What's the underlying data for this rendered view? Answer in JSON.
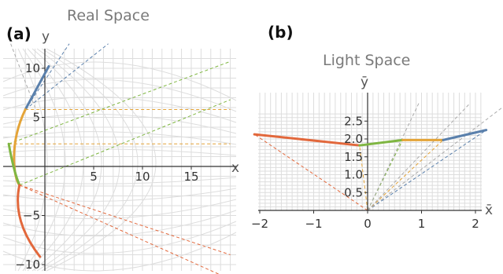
{
  "panel_a": {
    "label": "(a)",
    "title": "Real Space",
    "xlabel": "x",
    "ylabel": "y",
    "x_ticks": [
      "5",
      "10",
      "15"
    ],
    "y_ticks": [
      "10",
      "5",
      "−5",
      "−10"
    ]
  },
  "panel_b": {
    "label": "(b)",
    "title": "Light Space",
    "xlabel": "x̄",
    "ylabel": "ȳ",
    "x_ticks": [
      "−2",
      "−1",
      "0",
      "1",
      "2"
    ],
    "y_ticks": [
      "0.5",
      "1.0",
      "1.5",
      "2.0",
      "2.5"
    ]
  },
  "colors": {
    "blue": "#5a80ac",
    "orange": "#e4a438",
    "green": "#7fb642",
    "red": "#e2683c",
    "gray": "#aaaaaa",
    "grid": "#dddddd"
  },
  "chart_data": [
    {
      "type": "line",
      "xlim": [
        -3.5,
        19
      ],
      "ylim": [
        -10.5,
        13
      ],
      "grid": true,
      "series": [
        {
          "color": "blue",
          "x": [
            0.4,
            -2
          ],
          "y": [
            10.2,
            5.8
          ]
        },
        {
          "color": "orange",
          "x": [
            -2,
            -3.7,
            -3.2,
            -2.6
          ],
          "y": [
            5.8,
            2.3,
            -1.2,
            -1.9
          ]
        },
        {
          "color": "green",
          "x": [
            -3.7,
            -3.2,
            -2.6
          ],
          "y": [
            2.3,
            -0.5,
            -1.9
          ]
        },
        {
          "color": "red",
          "x": [
            -2.6,
            -3.4,
            -0.5
          ],
          "y": [
            -1.9,
            -5.5,
            -9.2
          ]
        }
      ]
    },
    {
      "type": "line",
      "xlim": [
        -2.6,
        2.6
      ],
      "ylim": [
        0,
        2.7
      ],
      "grid": true,
      "series": [
        {
          "color": "red",
          "x": [
            -2.1,
            -0.15
          ],
          "y": [
            2.13,
            1.82
          ]
        },
        {
          "color": "green",
          "x": [
            -0.15,
            0.65
          ],
          "y": [
            1.82,
            1.97
          ]
        },
        {
          "color": "orange",
          "x": [
            0.65,
            1.4
          ],
          "y": [
            1.97,
            1.97
          ]
        },
        {
          "color": "blue",
          "x": [
            1.4,
            2.2
          ],
          "y": [
            1.97,
            2.25
          ]
        }
      ]
    }
  ]
}
